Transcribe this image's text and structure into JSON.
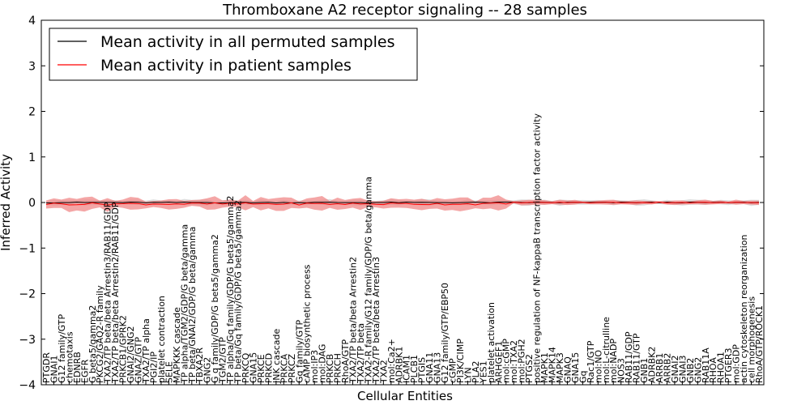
{
  "chart_data": {
    "type": "line",
    "title": "Thromboxane A2 receptor signaling -- 28 samples",
    "xlabel": "Cellular Entities",
    "ylabel": "Inferred Activity",
    "ylim": [
      -4,
      4
    ],
    "yticks": [
      -4,
      -3,
      -2,
      -1,
      0,
      1,
      2,
      3,
      4
    ],
    "grid": false,
    "legend_position": "top-left",
    "series": [
      {
        "name": "Mean activity in all permuted samples",
        "color": "#000000",
        "mean": 0.0,
        "band": 0.05
      },
      {
        "name": "Mean activity in patient samples",
        "color": "#ff0000",
        "mean": -0.03,
        "band": 0.12
      }
    ],
    "categories": [
      "PTGDR",
      "GNAI1",
      "G12 family/GTP",
      "chemotaxis",
      "EDNRB",
      "EGFR",
      "G beta5/gamma2",
      "PKCG2/GAQ2-R family",
      "TXA2/TP beta/beta Arrestin3/RAB11/GDP",
      "TXA2/TP beta/beta Arrestin2/RAB11/GDP",
      "PRKCB1/GPRK2",
      "GNAI2/GNG2",
      "GNAZ/GTP",
      "TXA2/TP alpha",
      "PGI2/IP",
      "platelet contraction",
      "SELE",
      "MAPKKK cascade",
      "TP alpha/TGM2/GDP/G beta/gamma",
      "TP beta/GNAI2/GDP/G beta/gamma",
      "TBXA2R",
      "GNG2",
      "G q family/GDP/G beta5/gamma2",
      "TGM2/GTP",
      "TP alpha/Gq family/GDP/G beta5/gamma2",
      "TP beta/Gq family/GDP/G beta5/gamma2",
      "PRKCQ",
      "GNA15",
      "PRKCE",
      "PRKCD",
      "JNK cascade",
      "PRKCA",
      "PRKCZ",
      "Gq family/GTP",
      "cAMP biosynthetic process",
      "mol:IP3",
      "mol:DAG",
      "PRKCB",
      "PRKCH",
      "RhoA/GTP",
      "TXA2/TP beta/beta Arrestin2",
      "TXA2/TP beta",
      "TXA2-R family/G12 family/GDP/G beta/gamma",
      "TXA2/TP beta/beta Arrestin3",
      "TXA2",
      "mol:Ca2+",
      "ADRBK1",
      "ICAM1",
      "PLCB1",
      "PTGIS",
      "GNA11",
      "GNA13",
      "G12 family/GTP/EBP50",
      "cGMP",
      "PI3K/CIMP",
      "LYN",
      "PLA2",
      "YES1",
      "platelet activation",
      "ARHGEF1",
      "mol:cGMP",
      "mol:TXA2",
      "mol:PGH2",
      "PTGS2",
      "positive regulation of NF-kappaB transcription factor activity",
      "MAPK1",
      "MAPK14",
      "MAPK3",
      "GNAQ",
      "GNA15",
      "Gq",
      "Rac1/GTP",
      "mol:NO",
      "mol:L-citrulline",
      "mol:NADP",
      "NOS3",
      "RAB11/GDP",
      "RAB11/GTP",
      "GNB1",
      "ADRBK2",
      "ARRB1",
      "ARRB2",
      "GNAI2",
      "GNAI3",
      "GNB2",
      "GNG2",
      "RAB11A",
      "RHOA",
      "RHOA1",
      "PTGER3",
      "mol:GDP",
      "actin cytoskeleton reorganization",
      "cell morphogenesis",
      "RhoA/GTP/ROCK1"
    ]
  }
}
